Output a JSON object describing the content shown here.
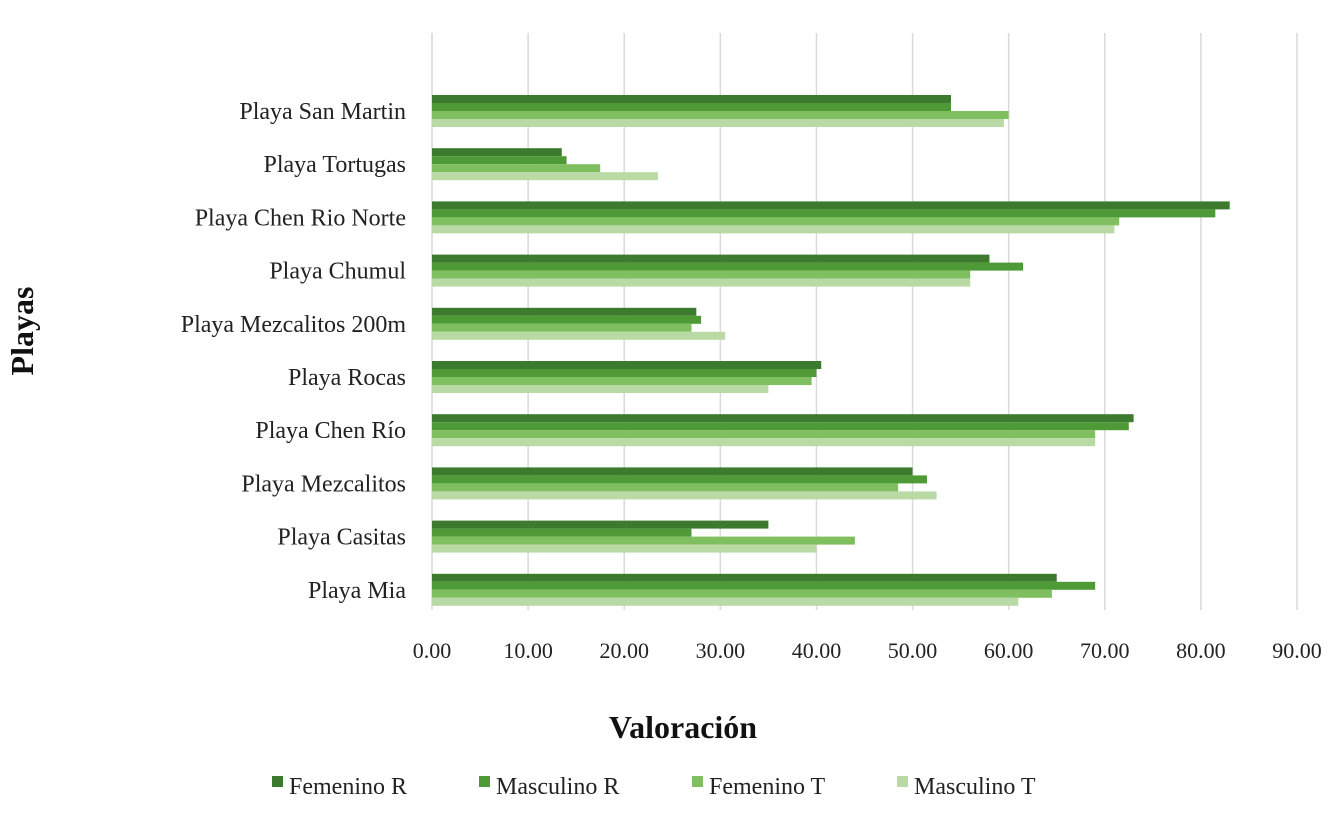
{
  "chart_data": {
    "type": "bar",
    "orientation": "horizontal",
    "categories": [
      "Playa San Martin",
      "Playa Tortugas",
      "Playa Chen Rio Norte",
      "Playa Chumul",
      "Playa Mezcalitos 200m",
      "Playa Rocas",
      "Playa Chen Río",
      "Playa Mezcalitos",
      "Playa Casitas",
      "Playa Mia"
    ],
    "series": [
      {
        "name": "Femenino R",
        "color": "#3c7a2e",
        "values": [
          54.0,
          13.5,
          83.0,
          58.0,
          27.5,
          40.5,
          73.0,
          50.0,
          35.0,
          65.0
        ]
      },
      {
        "name": "Masculino R",
        "color": "#4e9a36",
        "values": [
          54.0,
          14.0,
          81.5,
          61.5,
          28.0,
          40.0,
          72.5,
          51.5,
          27.0,
          69.0
        ]
      },
      {
        "name": "Femenino T",
        "color": "#7fbf60",
        "values": [
          60.0,
          17.5,
          71.5,
          56.0,
          27.0,
          39.5,
          69.0,
          48.5,
          44.0,
          64.5
        ]
      },
      {
        "name": "Masculino T",
        "color": "#b9d9a5",
        "values": [
          59.5,
          23.5,
          71.0,
          56.0,
          30.5,
          35.0,
          69.0,
          52.5,
          40.0,
          61.0
        ]
      }
    ],
    "xlabel": "Valoración",
    "ylabel": "Playas",
    "xlim": [
      0,
      90
    ],
    "xticks": [
      "0.00",
      "10.00",
      "20.00",
      "30.00",
      "40.00",
      "50.00",
      "60.00",
      "70.00",
      "80.00",
      "90.00"
    ],
    "grid": "vertical",
    "legend": "bottom"
  }
}
